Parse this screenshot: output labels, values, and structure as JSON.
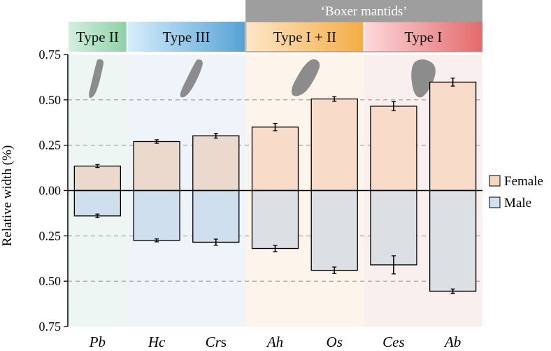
{
  "chart_data": {
    "type": "bar",
    "ylabel": "Relative width (%)",
    "ylim": [
      -0.75,
      0.75
    ],
    "yticks": [
      0.75,
      0.5,
      0.25,
      0.0,
      -0.25,
      -0.5,
      -0.75
    ],
    "ytick_labels": [
      "0.75",
      "0.50",
      "0.25",
      "0.00",
      "0.25",
      "0.50",
      "0.75"
    ],
    "categories": [
      "Pb",
      "Hc",
      "Crs",
      "Ah",
      "Os",
      "Ces",
      "Ab"
    ],
    "category_parts": [
      {
        "italic": "Pb",
        "plain": ""
      },
      {
        "italic": "Hc",
        "plain": ""
      },
      {
        "italic": "Cr",
        "plain": "s"
      },
      {
        "italic": "Ah",
        "plain": ""
      },
      {
        "italic": "Os",
        "plain": ""
      },
      {
        "italic": "Ces",
        "plain": ""
      },
      {
        "italic": "Ab",
        "plain": ""
      }
    ],
    "series": [
      {
        "name": "Female",
        "values": [
          0.135,
          0.27,
          0.302,
          0.35,
          0.505,
          0.465,
          0.598
        ],
        "errors": [
          0.008,
          0.01,
          0.013,
          0.02,
          0.013,
          0.025,
          0.022
        ]
      },
      {
        "name": "Male",
        "values": [
          -0.14,
          -0.275,
          -0.285,
          -0.32,
          -0.44,
          -0.41,
          -0.555
        ],
        "errors": [
          0.01,
          0.008,
          0.017,
          0.017,
          0.018,
          0.05,
          0.012
        ]
      }
    ],
    "groups": [
      {
        "label": "Type II",
        "start": 0,
        "end": 0,
        "colors": [
          "#d3efdf",
          "#8fd1a9"
        ],
        "bg": "#edf6f2"
      },
      {
        "label": "Type III",
        "start": 1,
        "end": 2,
        "colors": [
          "#d6eefb",
          "#57a2d6"
        ],
        "bg": "#eef4f9"
      },
      {
        "label": "Type I + II",
        "start": 3,
        "end": 4,
        "colors": [
          "#fde7c8",
          "#f4ad45"
        ],
        "bg": "#fdf4ec"
      },
      {
        "label": "Type I",
        "start": 5,
        "end": 6,
        "colors": [
          "#fdd8dc",
          "#e36a6c"
        ],
        "bg": "#faefef"
      }
    ],
    "supergroup": {
      "label": "‘Boxer mantids’",
      "start": 3,
      "end": 6
    },
    "legend": [
      "Female",
      "Male"
    ],
    "legend_position": "right",
    "grid": "dashed at ±0.25 and ±0.50"
  },
  "colors": {
    "female_fill": "#ecd9ce",
    "male_fill": "#cfdfee",
    "female_fill_warm": "#f8dcc9",
    "male_fill_warm": "#dcdfe4",
    "female_legend": "#f6d6bd",
    "male_legend": "#cfe0f0",
    "shell": "#8c8c8c",
    "supergroup_bar": "#9e9e9e",
    "axis": "#000000",
    "grid": "#9a9a9a"
  },
  "shapes": [
    {
      "category": "Pb",
      "icon": "shell-shape-icon"
    },
    {
      "category": "Crs",
      "icon": "shell-shape-icon"
    },
    {
      "category": "Ah",
      "icon": "shell-shape-icon"
    },
    {
      "category": "Ces",
      "icon": "shell-shape-icon"
    }
  ]
}
